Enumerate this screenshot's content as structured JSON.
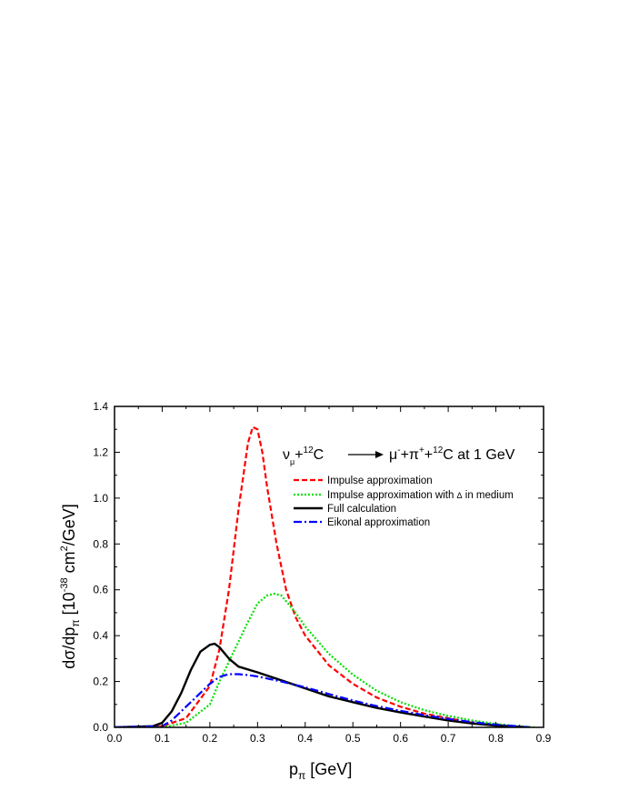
{
  "chart_data": {
    "type": "line",
    "xlabel": {
      "base": "p",
      "sub": "π",
      "rest": " [GeV]"
    },
    "ylabel": {
      "p1": "dσ/dp",
      "sub": "π",
      "p2": " [10",
      "sup1": "-38",
      "p3": " cm",
      "sup2": "2",
      "p4": "/GeV]"
    },
    "xlim": [
      0.0,
      0.9
    ],
    "ylim": [
      0.0,
      1.4
    ],
    "x_ticks": [
      "0.0",
      "0.1",
      "0.2",
      "0.3",
      "0.4",
      "0.5",
      "0.6",
      "0.7",
      "0.8",
      "0.9"
    ],
    "y_ticks": [
      "0.0",
      "0.2",
      "0.4",
      "0.6",
      "0.8",
      "1.0",
      "1.2",
      "1.4"
    ],
    "grid": false,
    "legend_position": "top-right",
    "reaction": {
      "nu": "ν",
      "nu_sub": "μ",
      "plus1": "+",
      "c_sup": "12",
      "c": "C",
      "mu": "μ",
      "mu_sup": "-",
      "plus2": "+",
      "pi": "π",
      "pi_sup": "+",
      "plus3": "+",
      "c2_sup": "12",
      "c2": "C at 1 GeV"
    },
    "series": [
      {
        "name": "Impulse approximation",
        "color": "#ff0000",
        "dash": "dashed",
        "x": [
          0.0,
          0.05,
          0.1,
          0.15,
          0.2,
          0.22,
          0.24,
          0.26,
          0.28,
          0.29,
          0.3,
          0.31,
          0.32,
          0.34,
          0.36,
          0.38,
          0.4,
          0.45,
          0.5,
          0.55,
          0.6,
          0.65,
          0.7,
          0.75,
          0.8,
          0.85,
          0.87
        ],
        "y": [
          0.0,
          0.0,
          0.005,
          0.04,
          0.18,
          0.34,
          0.6,
          0.95,
          1.24,
          1.31,
          1.3,
          1.2,
          1.05,
          0.8,
          0.6,
          0.48,
          0.4,
          0.27,
          0.19,
          0.13,
          0.09,
          0.06,
          0.04,
          0.02,
          0.01,
          0.002,
          0.0
        ]
      },
      {
        "name": "Impulse approximation with Δ in medium",
        "name_parts": {
          "before": "Impulse approximation with ",
          "symbol": "Δ",
          "after": " in medium"
        },
        "color": "#00e000",
        "dash": "dotted",
        "x": [
          0.0,
          0.1,
          0.15,
          0.2,
          0.22,
          0.25,
          0.28,
          0.3,
          0.32,
          0.335,
          0.35,
          0.38,
          0.4,
          0.45,
          0.5,
          0.55,
          0.6,
          0.65,
          0.7,
          0.75,
          0.8,
          0.85,
          0.88
        ],
        "y": [
          0.0,
          0.0,
          0.02,
          0.1,
          0.2,
          0.33,
          0.46,
          0.54,
          0.575,
          0.583,
          0.575,
          0.5,
          0.44,
          0.32,
          0.23,
          0.16,
          0.11,
          0.075,
          0.05,
          0.03,
          0.015,
          0.004,
          0.0
        ]
      },
      {
        "name": "Full calculation",
        "color": "#000000",
        "dash": "solid",
        "x": [
          0.0,
          0.08,
          0.1,
          0.12,
          0.14,
          0.16,
          0.18,
          0.2,
          0.21,
          0.22,
          0.24,
          0.26,
          0.3,
          0.35,
          0.4,
          0.45,
          0.5,
          0.55,
          0.6,
          0.65,
          0.7,
          0.75,
          0.8,
          0.85,
          0.87
        ],
        "y": [
          0.0,
          0.005,
          0.02,
          0.07,
          0.15,
          0.25,
          0.33,
          0.36,
          0.365,
          0.35,
          0.3,
          0.265,
          0.24,
          0.205,
          0.17,
          0.135,
          0.11,
          0.085,
          0.065,
          0.047,
          0.03,
          0.017,
          0.008,
          0.002,
          0.0
        ]
      },
      {
        "name": "Eikonal approximation",
        "color": "#0000ff",
        "dash": "dashdot",
        "x": [
          0.0,
          0.1,
          0.12,
          0.14,
          0.16,
          0.18,
          0.2,
          0.22,
          0.24,
          0.26,
          0.28,
          0.3,
          0.35,
          0.4,
          0.45,
          0.5,
          0.55,
          0.6,
          0.65,
          0.7,
          0.75,
          0.8,
          0.85,
          0.87
        ],
        "y": [
          0.0,
          0.005,
          0.03,
          0.07,
          0.11,
          0.15,
          0.19,
          0.22,
          0.232,
          0.232,
          0.228,
          0.222,
          0.2,
          0.175,
          0.145,
          0.117,
          0.093,
          0.072,
          0.053,
          0.037,
          0.023,
          0.012,
          0.004,
          0.0
        ]
      }
    ]
  }
}
